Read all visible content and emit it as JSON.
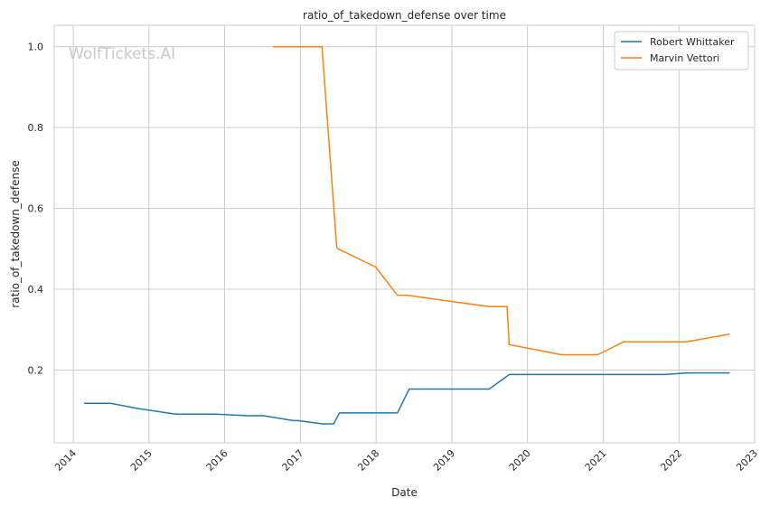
{
  "chart_data": {
    "type": "line",
    "title": "ratio_of_takedown_defense over time",
    "xlabel": "Date",
    "ylabel": "ratio_of_takedown_defense",
    "watermark": "WolfTickets.AI",
    "xlim": [
      "2013-10-01",
      "2023-01-01"
    ],
    "ylim": [
      0.02,
      1.053
    ],
    "x_ticks": [
      {
        "date": "2014-01-01",
        "label": "2014"
      },
      {
        "date": "2015-01-01",
        "label": "2015"
      },
      {
        "date": "2016-01-01",
        "label": "2016"
      },
      {
        "date": "2017-01-01",
        "label": "2017"
      },
      {
        "date": "2018-01-01",
        "label": "2018"
      },
      {
        "date": "2019-01-01",
        "label": "2019"
      },
      {
        "date": "2020-01-01",
        "label": "2020"
      },
      {
        "date": "2021-01-01",
        "label": "2021"
      },
      {
        "date": "2022-01-01",
        "label": "2022"
      },
      {
        "date": "2023-01-01",
        "label": "2023"
      }
    ],
    "y_ticks": [
      {
        "value": 0.2,
        "label": "0.2"
      },
      {
        "value": 0.4,
        "label": "0.4"
      },
      {
        "value": 0.6,
        "label": "0.6"
      },
      {
        "value": 0.8,
        "label": "0.8"
      },
      {
        "value": 1.0,
        "label": "1.0"
      }
    ],
    "grid": true,
    "legend_position": "top-right",
    "series": [
      {
        "name": "Robert Whittaker",
        "color": "#1f77b4",
        "points": [
          [
            "2014-02-22",
            0.118
          ],
          [
            "2014-06-28",
            0.118
          ],
          [
            "2014-11-08",
            0.105
          ],
          [
            "2015-05-10",
            0.091
          ],
          [
            "2015-11-15",
            0.091
          ],
          [
            "2016-04-23",
            0.087
          ],
          [
            "2016-07-07",
            0.087
          ],
          [
            "2016-11-27",
            0.075
          ],
          [
            "2016-12-20",
            0.075
          ],
          [
            "2017-04-16",
            0.067
          ],
          [
            "2017-06-10",
            0.067
          ],
          [
            "2017-07-08",
            0.094
          ],
          [
            "2018-02-10",
            0.094
          ],
          [
            "2018-04-14",
            0.094
          ],
          [
            "2018-06-09",
            0.153
          ],
          [
            "2019-06-30",
            0.153
          ],
          [
            "2019-10-06",
            0.189
          ],
          [
            "2021-04-17",
            0.189
          ],
          [
            "2021-10-23",
            0.189
          ],
          [
            "2022-02-12",
            0.193
          ],
          [
            "2022-09-03",
            0.193
          ]
        ]
      },
      {
        "name": "Marvin Vettori",
        "color": "#ff7f0e",
        "points": [
          [
            "2016-08-20",
            1.0
          ],
          [
            "2016-12-10",
            1.0
          ],
          [
            "2017-04-15",
            1.0
          ],
          [
            "2017-06-25",
            0.503
          ],
          [
            "2017-07-01",
            0.5
          ],
          [
            "2017-12-30",
            0.455
          ],
          [
            "2018-04-14",
            0.385
          ],
          [
            "2018-06-01",
            0.385
          ],
          [
            "2019-07-01",
            0.357
          ],
          [
            "2019-09-25",
            0.357
          ],
          [
            "2019-10-05",
            0.263
          ],
          [
            "2020-06-13",
            0.238
          ],
          [
            "2020-12-05",
            0.238
          ],
          [
            "2021-04-10",
            0.27
          ],
          [
            "2021-10-23",
            0.27
          ],
          [
            "2022-02-05",
            0.27
          ],
          [
            "2022-09-03",
            0.289
          ]
        ]
      }
    ]
  }
}
